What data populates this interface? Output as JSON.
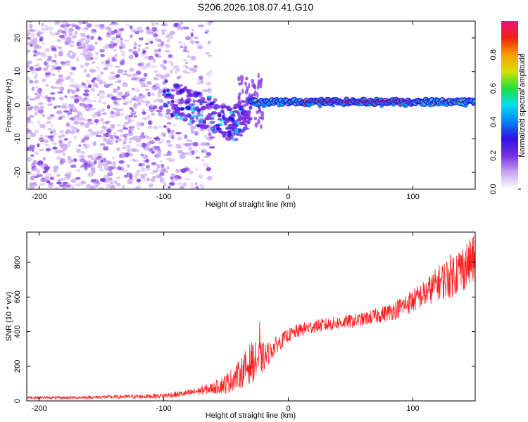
{
  "title": "S206.2026.108.07.41.G10",
  "chart_data": [
    {
      "type": "heatmap",
      "title": "S206.2026.108.07.41.G10",
      "xlabel": "Height of straight line (km)",
      "ylabel": "Frequency (Hz)",
      "xlim": [
        -210,
        150
      ],
      "ylim": [
        -25,
        25
      ],
      "xticks": [
        -200,
        -100,
        0,
        100
      ],
      "xtick_labels": [
        "-200",
        "-100",
        "0",
        "100"
      ],
      "yticks": [
        -20,
        -10,
        0,
        10,
        20
      ],
      "ytick_labels": [
        "-20",
        "-10",
        "0",
        "10",
        "20"
      ],
      "colorbar": {
        "label": "Normalized spectral amplitude",
        "range": [
          0,
          1
        ],
        "ticks": [
          0.0,
          0.2,
          0.4,
          0.6,
          0.8
        ],
        "tick_labels": [
          "0.0",
          "0.2",
          "0.4",
          "0.6",
          "0.8"
        ],
        "colors": [
          "#ffffff",
          "#c8a6f0",
          "#7a2ee0",
          "#3010e8",
          "#0a7ff2",
          "#00e0f0",
          "#20e040",
          "#d6e000",
          "#f7a000",
          "#f02010",
          "#f01080"
        ]
      },
      "description_signal": {
        "scattered_noise_x_range": [
          -210,
          -60
        ],
        "descending_trace": [
          [
            -100,
            3
          ],
          [
            -80,
            0
          ],
          [
            -60,
            -3
          ],
          [
            -45,
            -6
          ],
          [
            -30,
            -2
          ]
        ],
        "carrier_line_x_range": [
          -30,
          150
        ],
        "carrier_line_frequency": 1
      }
    },
    {
      "type": "line",
      "title": "",
      "xlabel": "Height of straight line (km)",
      "ylabel": "SNR (10 * v/v)",
      "xlim": [
        -210,
        150
      ],
      "ylim": [
        0,
        975
      ],
      "xticks": [
        -200,
        -100,
        0,
        100
      ],
      "xtick_labels": [
        "-200",
        "-100",
        "0",
        "100"
      ],
      "yticks": [
        0,
        200,
        400,
        600,
        800
      ],
      "ytick_labels": [
        "0",
        "200",
        "400",
        "600",
        "800"
      ],
      "color": "#ff2020",
      "series": [
        {
          "name": "SNR",
          "x": [
            -210,
            -180,
            -150,
            -120,
            -100,
            -80,
            -70,
            -60,
            -50,
            -40,
            -30,
            -20,
            -15,
            -10,
            0,
            10,
            20,
            30,
            40,
            50,
            60,
            70,
            80,
            90,
            100,
            110,
            120,
            130,
            140,
            150
          ],
          "values": [
            20,
            18,
            22,
            25,
            30,
            45,
            60,
            75,
            100,
            150,
            220,
            250,
            280,
            320,
            380,
            410,
            430,
            440,
            450,
            460,
            470,
            490,
            510,
            540,
            580,
            620,
            680,
            720,
            770,
            820
          ],
          "noise_amplitude": [
            8,
            8,
            10,
            12,
            15,
            20,
            25,
            35,
            60,
            80,
            120,
            90,
            60,
            50,
            40,
            40,
            40,
            40,
            40,
            40,
            40,
            45,
            50,
            60,
            70,
            80,
            100,
            130,
            140,
            140
          ],
          "spike": {
            "x": -23,
            "value": 455
          }
        }
      ]
    }
  ]
}
